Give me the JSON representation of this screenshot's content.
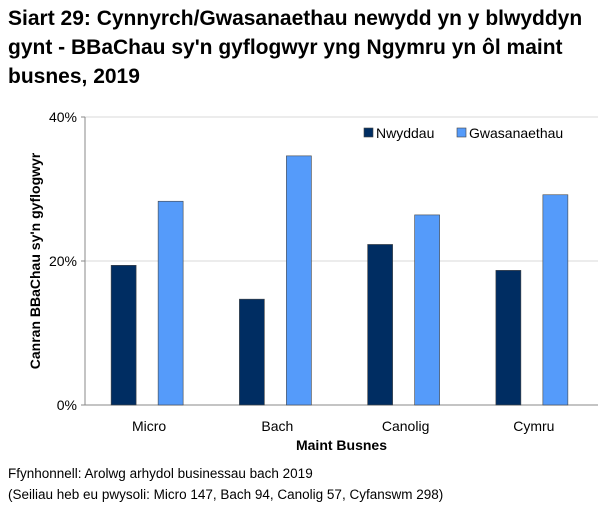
{
  "chart_data": {
    "type": "bar",
    "title": "Siart 29: Cynnyrch/Gwasanaethau newydd yn y blwyddyn gynt - BBaChau sy'n gyflogwyr yng Ngymru yn ôl maint busnes, 2019",
    "xlabel": "Maint Busnes",
    "ylabel": "Canran BBaChau sy'n gyflogwyr",
    "categories": [
      "Micro",
      "Bach",
      "Canolig",
      "Cymru"
    ],
    "series": [
      {
        "name": "Nwyddau",
        "color": "#002d62",
        "values": [
          19.4,
          14.7,
          22.3,
          18.7
        ]
      },
      {
        "name": "Gwasanaethau",
        "color": "#559bfa",
        "values": [
          28.3,
          34.6,
          26.4,
          29.2
        ]
      }
    ],
    "ylim": [
      0,
      40
    ],
    "yticks": [
      0,
      20,
      40
    ],
    "ytick_labels": [
      "0%",
      "20%",
      "40%"
    ],
    "grid": true,
    "legend": "top-right"
  },
  "source": "Ffynhonnell: Arolwg arhydol businessau bach 2019",
  "note": "(Seiliau heb eu pwysoli: Micro 147, Bach 94, Canolig 57, Cyfanswm 298)"
}
